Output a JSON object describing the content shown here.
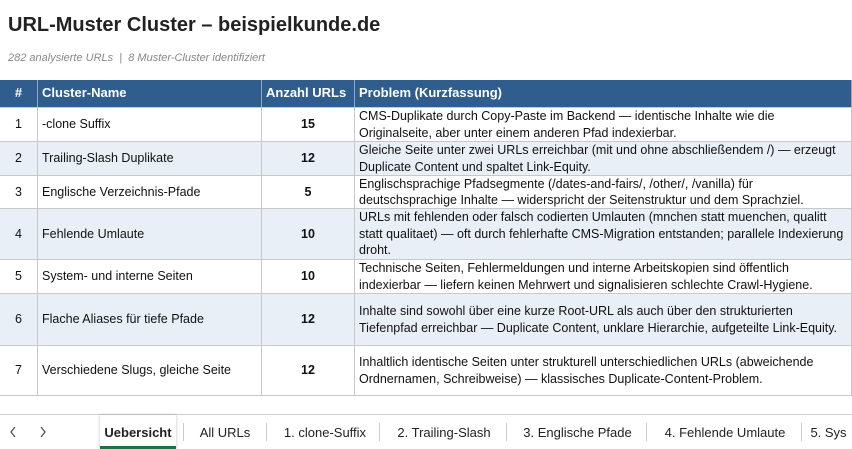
{
  "header": {
    "title": "URL-Muster Cluster – beispielkunde.de",
    "subtitle": "282 analysierte URLs  |  8 Muster-Cluster identifiziert"
  },
  "table": {
    "columns": [
      "#",
      "Cluster-Name",
      "Anzahl URLs",
      "Problem (Kurzfassung)"
    ],
    "rows": [
      [
        1,
        "-clone Suffix",
        15,
        "CMS-Duplikate durch Copy-Paste im Backend — identische Inhalte wie die Originalseite, aber unter einem anderen Pfad indexierbar."
      ],
      [
        2,
        "Trailing-Slash Duplikate",
        12,
        "Gleiche Seite unter zwei URLs erreichbar (mit und ohne abschließendem /) — erzeugt Duplicate Content und spaltet Link-Equity."
      ],
      [
        3,
        "Englische Verzeichnis-Pfade",
        5,
        "Englischsprachige Pfadsegmente (/dates-and-fairs/, /other/, /vanilla) für deutschsprachige Inhalte — widerspricht der Seitenstruktur und dem Sprachziel."
      ],
      [
        4,
        "Fehlende Umlaute",
        10,
        "URLs mit fehlenden oder falsch codierten Umlauten (mnchen statt muenchen, qualitt statt qualitaet) — oft durch fehlerhafte CMS-Migration entstanden; parallele Indexierung droht."
      ],
      [
        5,
        "System- und interne Seiten",
        10,
        "Technische Seiten, Fehlermeldungen und interne Arbeitskopien sind öffentlich indexierbar — liefern keinen Mehrwert und signalisieren schlechte Crawl-Hygiene."
      ],
      [
        6,
        "Flache Aliases für tiefe Pfade",
        12,
        "Inhalte sind sowohl über eine kurze Root-URL als auch über den strukturierten Tiefenpfad erreichbar — Duplicate Content, unklare Hierarchie, aufgeteilte Link-Equity."
      ],
      [
        7,
        "Verschiedene Slugs, gleiche Seite",
        12,
        "Inhaltlich identische Seiten unter strukturell unterschiedlichen URLs (abweichende Ordnernamen, Schreibweise) — klassisches Duplicate-Content-Problem."
      ]
    ]
  },
  "tabs": {
    "items": [
      "Uebersicht",
      "All URLs",
      "1. clone-Suffix",
      "2. Trailing-Slash",
      "3. Englische Pfade",
      "4. Fehlende Umlaute",
      "5. Sys"
    ],
    "active": 0
  }
}
